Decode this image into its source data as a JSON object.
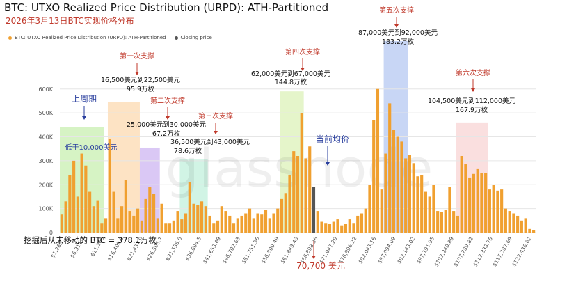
{
  "header": {
    "title": "BTC: UTXO Realized Price Distribution (URPD): ATH-Partitioned",
    "subtitle": "2026年3月13日BTC实现价格分布"
  },
  "legend": {
    "series_label": "BTC: UTXO Realized Price Distribution (URPD): ATH-Partitioned",
    "closing_label": "Closing price"
  },
  "watermark": "glassnode",
  "colors": {
    "bar": "#f0a030",
    "closing": "#555555",
    "annotation_red": "#c0392b",
    "annotation_blue": "#2a3f9e",
    "zone_green": "#c8efb0",
    "zone_orange": "#fcd9b0",
    "zone_purple": "#cdb5f2",
    "zone_teal": "#c2f0dc",
    "zone_lime": "#dcf2b8",
    "zone_blue": "#b6c8f2",
    "zone_pink": "#f8d4d4"
  },
  "chart_data": {
    "type": "bar",
    "title": "BTC: UTXO Realized Price Distribution (URPD): ATH-Partitioned",
    "ylim": [
      0,
      640000
    ],
    "y_ticks": [
      "0",
      "100K",
      "200K",
      "300K",
      "400K",
      "500K",
      "600K"
    ],
    "x_ticks": [
      "$1,262...",
      "$6,311.1",
      "$11,360",
      "$16,409.0",
      "$21,457.9",
      "$26,506.7",
      "$31,555.6",
      "$36,604.5",
      "$41,653.69",
      "$46,702.63",
      "$51,751.56",
      "$56,800.49",
      "$61,849.43",
      "$66,898.36",
      "$71,947.29",
      "$76,996.22",
      "$82,045.16",
      "$87,094.09",
      "$92,143.02",
      "$97,191.95",
      "$102,240.89",
      "$107,289.82",
      "$112,338.75",
      "$117,387.69",
      "$122,436.62"
    ],
    "values": [
      75000,
      130000,
      240000,
      300000,
      150000,
      330000,
      280000,
      170000,
      110000,
      135000,
      40000,
      60000,
      390000,
      170000,
      60000,
      110000,
      220000,
      90000,
      70000,
      100000,
      50000,
      140000,
      190000,
      160000,
      60000,
      120000,
      40000,
      40000,
      50000,
      90000,
      55000,
      80000,
      210000,
      120000,
      115000,
      130000,
      110000,
      70000,
      40000,
      50000,
      110000,
      90000,
      70000,
      40000,
      60000,
      70000,
      80000,
      100000,
      60000,
      80000,
      75000,
      95000,
      60000,
      80000,
      100000,
      140000,
      165000,
      240000,
      340000,
      320000,
      500000,
      310000,
      360000,
      190000,
      90000,
      45000,
      40000,
      35000,
      45000,
      55000,
      30000,
      35000,
      55000,
      40000,
      70000,
      80000,
      100000,
      200000,
      470000,
      600000,
      180000,
      330000,
      540000,
      430000,
      400000,
      380000,
      310000,
      325000,
      290000,
      235000,
      240000,
      170000,
      150000,
      200000,
      90000,
      85000,
      95000,
      190000,
      90000,
      70000,
      320000,
      285000,
      230000,
      245000,
      265000,
      250000,
      250000,
      180000,
      200000,
      175000,
      180000,
      100000,
      90000,
      80000,
      70000,
      50000,
      60000,
      15000,
      10000
    ],
    "closing_index": 63,
    "closing_price_label": "70,700 美元",
    "unmoved_note": "挖掘后从未移动的 BTC = 378.1万枚",
    "support_zones": [
      {
        "name": "上周期",
        "range": "低于10,000美元",
        "amount": "",
        "start": 0,
        "end": 10,
        "color": "#c8efb0"
      },
      {
        "name": "第一次支撑",
        "range": "16,500美元到22,500美元",
        "amount": "95.9万枚",
        "start": 12,
        "end": 19,
        "color": "#fcd9b0"
      },
      {
        "name": "第二次支撑",
        "range": "25,000美元到30,000美元",
        "amount": "67.2万枚",
        "start": 20,
        "end": 24,
        "color": "#cdb5f2"
      },
      {
        "name": "第三次支撑",
        "range": "36,500美元到43,000美元",
        "amount": "78.6万枚",
        "start": 30,
        "end": 36,
        "color": "#c2f0dc"
      },
      {
        "name": "第四次支撑",
        "range": "62,000美元到67,000美元",
        "amount": "144.8万枚",
        "start": 55,
        "end": 60,
        "color": "#dcf2b8"
      },
      {
        "name": "第五次支撑",
        "range": "87,000美元到92,000美元",
        "amount": "183.2万枚",
        "start": 81,
        "end": 86,
        "color": "#b6c8f2"
      },
      {
        "name": "第六次支撑",
        "range": "104,500美元到112,000美元",
        "amount": "167.9万枚",
        "start": 99,
        "end": 106,
        "color": "#f8d4d4"
      }
    ],
    "current_avg_label": "当前均价"
  }
}
